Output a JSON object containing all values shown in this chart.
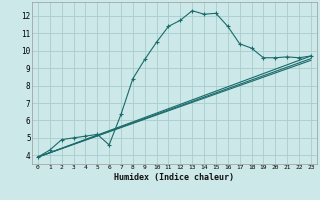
{
  "xlabel": "Humidex (Indice chaleur)",
  "bg_color": "#cce8e8",
  "grid_color": "#aacccc",
  "line_color": "#1a6b6b",
  "xlim": [
    -0.5,
    23.5
  ],
  "ylim": [
    3.5,
    12.8
  ],
  "xticks": [
    0,
    1,
    2,
    3,
    4,
    5,
    6,
    7,
    8,
    9,
    10,
    11,
    12,
    13,
    14,
    15,
    16,
    17,
    18,
    19,
    20,
    21,
    22,
    23
  ],
  "yticks": [
    4,
    5,
    6,
    7,
    8,
    9,
    10,
    11,
    12
  ],
  "line1_x": [
    0,
    1,
    2,
    3,
    4,
    5,
    6,
    7,
    8,
    9,
    10,
    11,
    12,
    13,
    14,
    15,
    16,
    17,
    18,
    19,
    20,
    21,
    22,
    23
  ],
  "line1_y": [
    3.9,
    4.3,
    4.9,
    5.0,
    5.1,
    5.2,
    4.6,
    6.35,
    8.4,
    9.5,
    10.5,
    11.4,
    11.75,
    12.3,
    12.1,
    12.15,
    11.4,
    10.4,
    10.15,
    9.6,
    9.6,
    9.65,
    9.6,
    9.7
  ],
  "line2_x": [
    0,
    23
  ],
  "line2_y": [
    3.9,
    9.7
  ],
  "line3_x": [
    0,
    23
  ],
  "line3_y": [
    3.9,
    9.55
  ],
  "line4_x": [
    0,
    23
  ],
  "line4_y": [
    3.9,
    9.45
  ]
}
